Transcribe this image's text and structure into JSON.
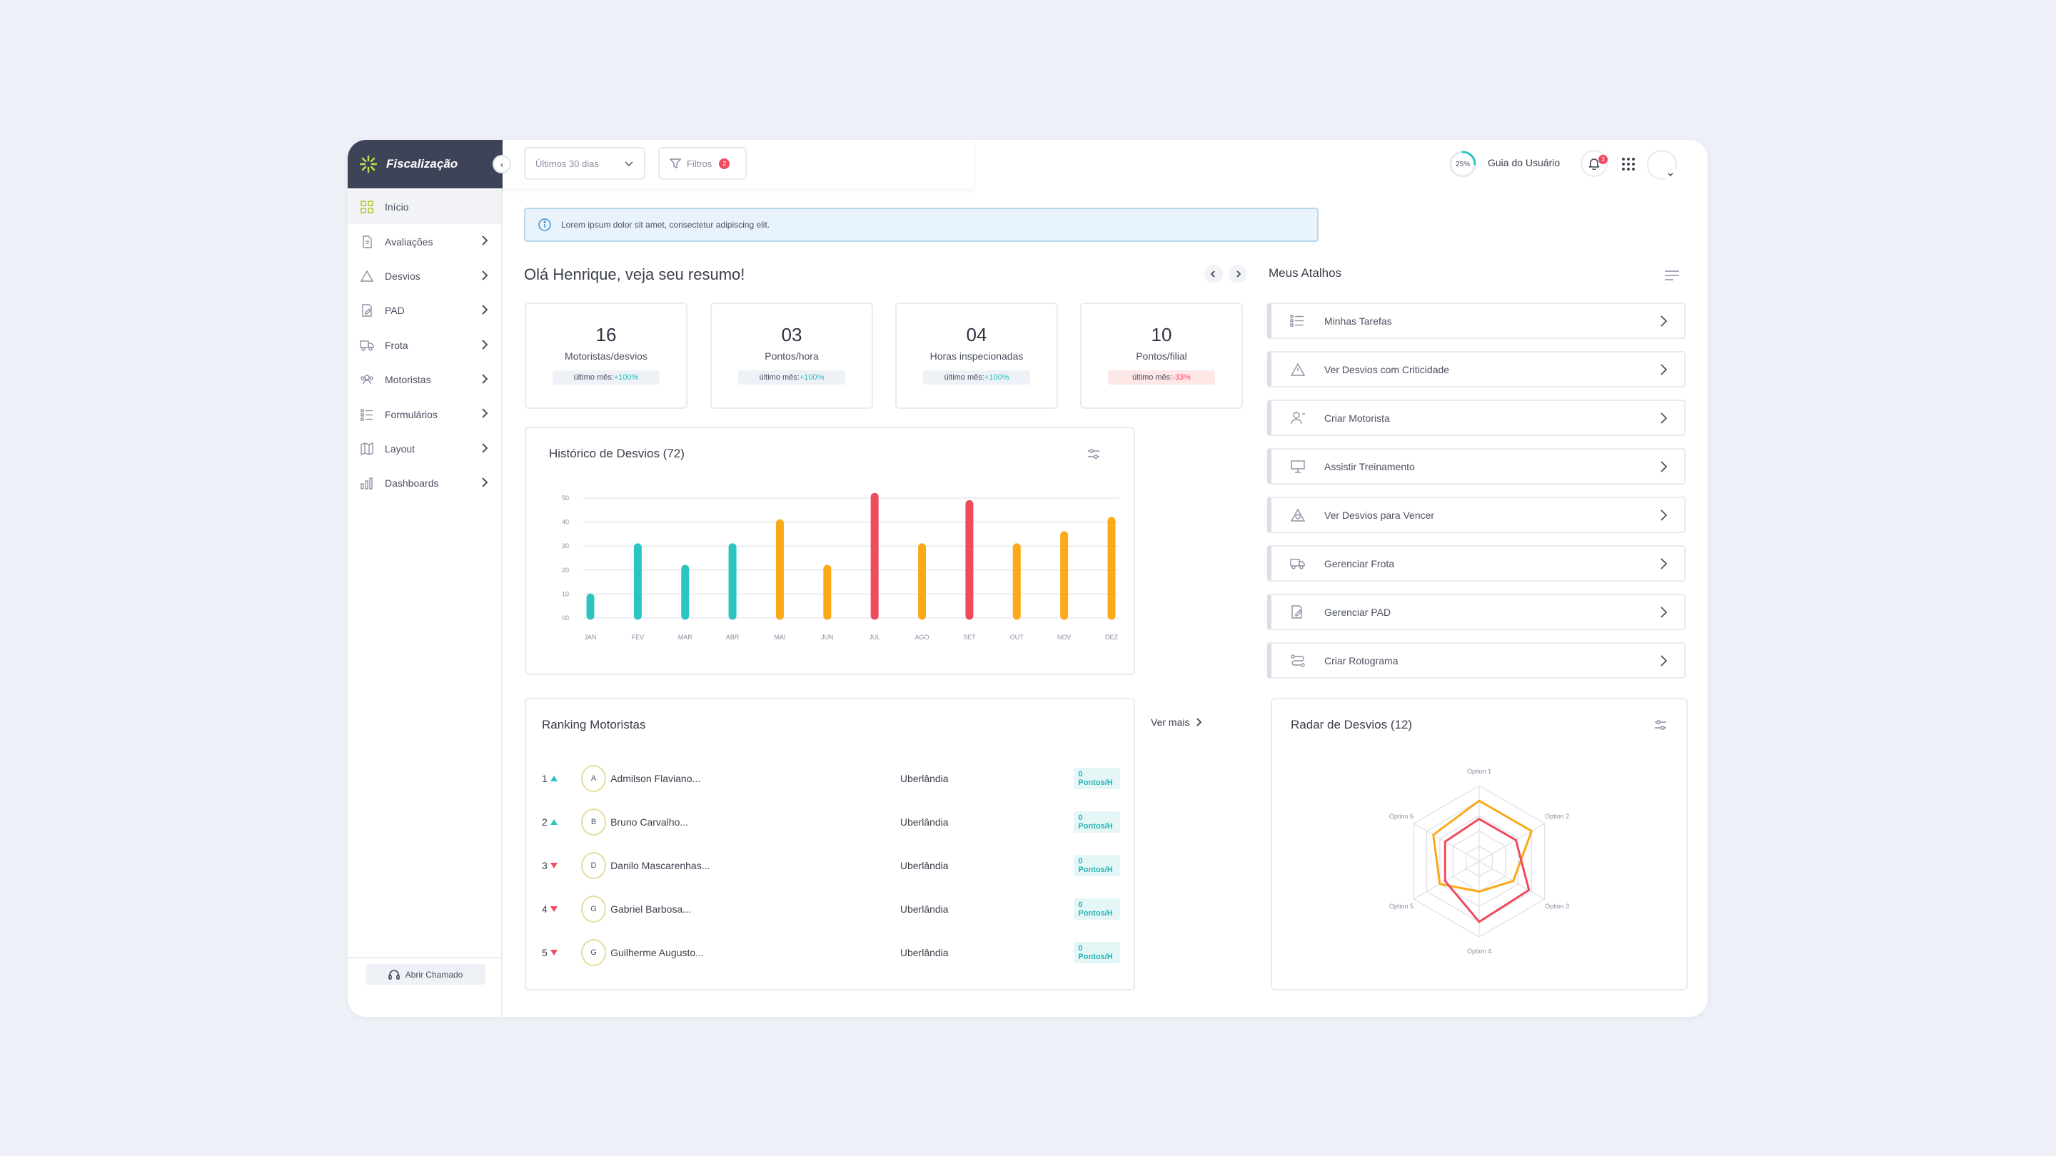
{
  "app": {
    "brand": "Fiscalização"
  },
  "sidebar": {
    "items": [
      {
        "label": "Início",
        "icon": "grid-icon",
        "active": true
      },
      {
        "label": "Avaliações",
        "icon": "document-icon"
      },
      {
        "label": "Desvios",
        "icon": "warning-icon"
      },
      {
        "label": "PAD",
        "icon": "edit-document-icon"
      },
      {
        "label": "Frota",
        "icon": "truck-icon"
      },
      {
        "label": "Motoristas",
        "icon": "users-icon"
      },
      {
        "label": "Formulários",
        "icon": "list-icon"
      },
      {
        "label": "Layout",
        "icon": "map-icon"
      },
      {
        "label": "Dashboards",
        "icon": "bar-chart-icon"
      }
    ],
    "support_label": "Abrir Chamado"
  },
  "header": {
    "date_range": "Últimos 30 dias",
    "filter_label": "Filtros",
    "filter_count": "2",
    "progress": "25%",
    "progress_value": 0.25,
    "guide_label": "Guia do Usuário",
    "notifications": "3"
  },
  "alert": {
    "text": "Lorem ipsum dolor sit amet, consectetur adipiscing elit."
  },
  "greeting": "Olá Henrique, veja seu resumo!",
  "stats": [
    {
      "value": "16",
      "label": "Motoristas/desvios",
      "prefix": "último mês:",
      "delta": "+100%",
      "trend": "up"
    },
    {
      "value": "03",
      "label": "Pontos/hora",
      "prefix": "último mês:",
      "delta": "+100%",
      "trend": "up"
    },
    {
      "value": "04",
      "label": "Horas inspecionadas",
      "prefix": "último mês:",
      "delta": "+100%",
      "trend": "up"
    },
    {
      "value": "10",
      "label": "Pontos/filial",
      "prefix": "último mês:",
      "delta": "-33%",
      "trend": "down"
    }
  ],
  "history": {
    "title": "Histórico de Desvios (72)"
  },
  "shortcuts": {
    "title": "Meus Atalhos",
    "items": [
      {
        "label": "Minhas Tarefas",
        "icon": "list-icon"
      },
      {
        "label": "Ver Desvios com Criticidade",
        "icon": "warning-icon"
      },
      {
        "label": "Criar Motorista",
        "icon": "user-add-icon"
      },
      {
        "label": "Assistir Treinamento",
        "icon": "presentation-icon"
      },
      {
        "label": "Ver Desvios para Vencer",
        "icon": "warning-clock-icon"
      },
      {
        "label": "Gerenciar Frota",
        "icon": "truck-icon"
      },
      {
        "label": "Gerenciar PAD",
        "icon": "edit-document-icon"
      },
      {
        "label": "Criar Rotograma",
        "icon": "route-icon"
      }
    ]
  },
  "ranking": {
    "title": "Ranking Motoristas",
    "see_more": "Ver mais",
    "rows": [
      {
        "pos": "1",
        "trend": "up",
        "initial": "A",
        "name": "Admilson Flaviano...",
        "city": "Uberlândia",
        "points": "0 Pontos/H"
      },
      {
        "pos": "2",
        "trend": "up",
        "initial": "B",
        "name": "Bruno Carvalho...",
        "city": "Uberlândia",
        "points": "0 Pontos/H"
      },
      {
        "pos": "3",
        "trend": "down",
        "initial": "D",
        "name": "Danilo Mascarenhas...",
        "city": "Uberlândia",
        "points": "0 Pontos/H"
      },
      {
        "pos": "4",
        "trend": "down",
        "initial": "G",
        "name": "Gabriel Barbosa...",
        "city": "Uberlândia",
        "points": "0 Pontos/H"
      },
      {
        "pos": "5",
        "trend": "down",
        "initial": "G",
        "name": "Guilherme Augusto...",
        "city": "Uberlândia",
        "points": "0 Pontos/H"
      }
    ]
  },
  "radar": {
    "title": "Radar de Desvios (12)"
  },
  "colors": {
    "teal": "#2bc4c0",
    "orange": "#fba919",
    "red": "#ee4b5e",
    "dark": "#3d4457"
  },
  "chart_data": [
    {
      "type": "bar",
      "title": "Histórico de Desvios (72)",
      "categories": [
        "JAN",
        "FEV",
        "MAR",
        "ABR",
        "MAI",
        "JUN",
        "JUL",
        "AGO",
        "SET",
        "OUT",
        "NOV",
        "DEZ"
      ],
      "values": [
        10,
        31,
        22,
        31,
        41,
        22,
        52,
        31,
        49,
        31,
        36,
        42
      ],
      "bar_colors": [
        "#2bc4c0",
        "#2bc4c0",
        "#2bc4c0",
        "#2bc4c0",
        "#fba919",
        "#fba919",
        "#ee4b5e",
        "#fba919",
        "#ee4b5e",
        "#fba919",
        "#fba919",
        "#fba919"
      ],
      "yticks": [
        "00",
        "10",
        "20",
        "30",
        "40",
        "50"
      ],
      "ylim": [
        0,
        50
      ],
      "grid": true
    },
    {
      "type": "radar",
      "title": "Radar de Desvios (12)",
      "axes": [
        "Option 1",
        "Option 2",
        "Option 3",
        "Option 4",
        "Option 5",
        "Option 6"
      ],
      "max": 5,
      "series": [
        {
          "values": [
            4,
            4,
            2.6,
            2,
            3,
            3.5
          ],
          "color": "#fba919"
        },
        {
          "values": [
            2.8,
            2.8,
            3.8,
            4,
            2.6,
            2.6
          ],
          "color": "#ee4b5e"
        }
      ]
    }
  ]
}
